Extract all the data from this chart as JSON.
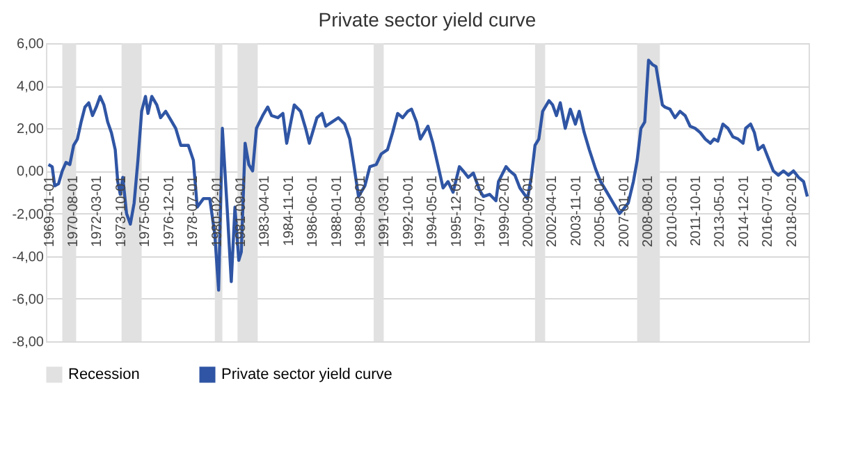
{
  "chart_data": {
    "type": "line",
    "title": "Private sector yield curve",
    "x": [
      "1969-01",
      "1969-04",
      "1969-06",
      "1969-09",
      "1969-12",
      "1970-03",
      "1970-06",
      "1970-09",
      "1970-12",
      "1971-03",
      "1971-06",
      "1971-09",
      "1971-12",
      "1972-03",
      "1972-06",
      "1972-09",
      "1972-12",
      "1973-03",
      "1973-06",
      "1973-08",
      "1973-10",
      "1973-12",
      "1974-03",
      "1974-06",
      "1974-09",
      "1974-12",
      "1975-03",
      "1975-06",
      "1975-08",
      "1975-11",
      "1976-03",
      "1976-06",
      "1976-10",
      "1977-02",
      "1977-06",
      "1977-10",
      "1978-04",
      "1978-08",
      "1978-11",
      "1979-04",
      "1979-09",
      "1980-01",
      "1980-04",
      "1980-07",
      "1980-11",
      "1981-02",
      "1981-05",
      "1981-08",
      "1981-10",
      "1982-01",
      "1982-04",
      "1982-07",
      "1982-10",
      "1983-03",
      "1983-07",
      "1983-10",
      "1984-03",
      "1984-07",
      "1984-10",
      "1985-04",
      "1985-09",
      "1986-01",
      "1986-04",
      "1986-10",
      "1987-02",
      "1987-05",
      "1987-10",
      "1988-03",
      "1988-08",
      "1988-12",
      "1989-03",
      "1989-07",
      "1989-12",
      "1990-04",
      "1990-09",
      "1991-01",
      "1991-06",
      "1991-10",
      "1992-02",
      "1992-06",
      "1992-10",
      "1993-01",
      "1993-05",
      "1993-08",
      "1994-02",
      "1994-06",
      "1994-11",
      "1995-02",
      "1995-06",
      "1995-10",
      "1996-03",
      "1996-06",
      "1996-10",
      "1997-02",
      "1997-07",
      "1997-10",
      "1998-03",
      "1998-08",
      "1998-10",
      "1999-04",
      "1999-07",
      "1999-11",
      "2000-03",
      "2000-09",
      "2000-12",
      "2001-03",
      "2001-06",
      "2001-09",
      "2002-02",
      "2002-05",
      "2002-08",
      "2002-11",
      "2003-03",
      "2003-07",
      "2003-11",
      "2004-02",
      "2004-06",
      "2004-10",
      "2005-03",
      "2005-07",
      "2005-12",
      "2006-05",
      "2006-10",
      "2007-01",
      "2007-05",
      "2007-09",
      "2007-12",
      "2008-03",
      "2008-06",
      "2008-09",
      "2008-12",
      "2009-03",
      "2009-08",
      "2009-10",
      "2010-02",
      "2010-06",
      "2010-10",
      "2011-02",
      "2011-06",
      "2011-10",
      "2012-02",
      "2012-06",
      "2012-10",
      "2013-01",
      "2013-04",
      "2013-08",
      "2013-12",
      "2014-04",
      "2014-08",
      "2014-12",
      "2015-02",
      "2015-06",
      "2015-09",
      "2015-12",
      "2016-04",
      "2016-08",
      "2016-12",
      "2017-04",
      "2017-08",
      "2017-12",
      "2018-04",
      "2018-08",
      "2018-12",
      "2019-03"
    ],
    "series": [
      {
        "name": "Private sector yield curve",
        "color": "#2f55a4",
        "values": [
          0.3,
          0.2,
          -0.7,
          -0.6,
          0.0,
          0.4,
          0.3,
          1.2,
          1.5,
          2.3,
          3.0,
          3.2,
          2.6,
          3.0,
          3.5,
          3.1,
          2.3,
          1.8,
          1.0,
          -0.5,
          -1.1,
          -0.3,
          -2.0,
          -2.5,
          -1.5,
          0.5,
          2.8,
          3.5,
          2.7,
          3.5,
          3.1,
          2.5,
          2.8,
          2.4,
          2.0,
          1.2,
          1.2,
          0.5,
          -1.7,
          -1.3,
          -1.3,
          -3.0,
          -5.6,
          2.0,
          -2.0,
          -5.2,
          -1.7,
          -4.2,
          -3.8,
          1.3,
          0.3,
          0.0,
          2.0,
          2.6,
          3.0,
          2.6,
          2.5,
          2.7,
          1.3,
          3.1,
          2.8,
          2.0,
          1.3,
          2.5,
          2.7,
          2.1,
          2.3,
          2.5,
          2.2,
          1.5,
          0.4,
          -1.2,
          -0.7,
          0.2,
          0.3,
          0.8,
          1.0,
          1.8,
          2.7,
          2.5,
          2.8,
          2.9,
          2.3,
          1.5,
          2.1,
          1.3,
          0.0,
          -0.8,
          -0.5,
          -1.0,
          0.2,
          0.0,
          -0.3,
          -0.1,
          -0.9,
          -1.2,
          -1.1,
          -1.4,
          -0.5,
          0.2,
          0.0,
          -0.2,
          -0.8,
          -1.3,
          -0.3,
          1.2,
          1.5,
          2.8,
          3.3,
          3.1,
          2.6,
          3.2,
          2.0,
          2.9,
          2.2,
          2.8,
          1.8,
          1.0,
          0.1,
          -0.5,
          -1.0,
          -1.5,
          -2.0,
          -1.8,
          -1.5,
          -0.5,
          0.5,
          2.0,
          2.3,
          5.2,
          5.0,
          4.9,
          3.1,
          3.0,
          2.9,
          2.5,
          2.8,
          2.6,
          2.1,
          2.0,
          1.8,
          1.5,
          1.3,
          1.5,
          1.4,
          2.2,
          2.0,
          1.6,
          1.5,
          1.3,
          2.0,
          2.2,
          1.8,
          1.0,
          1.2,
          0.6,
          0.0,
          -0.2,
          0.0,
          -0.2,
          0.0,
          -0.3,
          -0.5,
          -1.2
        ]
      }
    ],
    "bands": [
      {
        "axis": "x",
        "from": "1969-12",
        "to": "1970-11",
        "label": "Recession",
        "color": "#e1e1e1"
      },
      {
        "axis": "x",
        "from": "1973-11",
        "to": "1975-03",
        "color": "#e1e1e1"
      },
      {
        "axis": "x",
        "from": "1980-01",
        "to": "1980-07",
        "color": "#e1e1e1"
      },
      {
        "axis": "x",
        "from": "1981-07",
        "to": "1982-11",
        "color": "#e1e1e1"
      },
      {
        "axis": "x",
        "from": "1990-07",
        "to": "1991-03",
        "color": "#e1e1e1"
      },
      {
        "axis": "x",
        "from": "2001-03",
        "to": "2001-11",
        "color": "#e1e1e1"
      },
      {
        "axis": "x",
        "from": "2007-12",
        "to": "2009-06",
        "color": "#e1e1e1"
      }
    ],
    "xlim": [
      "1968-11",
      "2019-04"
    ],
    "xticks": [
      "1969-01-01",
      "1970-08-01",
      "1972-03-01",
      "1973-10-01",
      "1975-05-01",
      "1976-12-01",
      "1978-07-01",
      "1980-02-01",
      "1981-09-01",
      "1983-04-01",
      "1984-11-01",
      "1986-06-01",
      "1988-01-01",
      "1989-08-01",
      "1991-03-01",
      "1992-10-01",
      "1994-05-01",
      "1995-12-01",
      "1997-07-01",
      "1999-02-01",
      "2000-09-01",
      "2002-04-01",
      "2003-11-01",
      "2005-06-01",
      "2007-01-01",
      "2008-08-01",
      "2010-03-01",
      "2011-10-01",
      "2013-05-01",
      "2014-12-01",
      "2016-07-01",
      "2018-02-01"
    ],
    "ylim": [
      -8,
      6
    ],
    "yticks": [
      {
        "value": -8,
        "label": "-8,00"
      },
      {
        "value": -6,
        "label": "-6,00"
      },
      {
        "value": -4,
        "label": "-4,00"
      },
      {
        "value": -2,
        "label": "-2,00"
      },
      {
        "value": 0,
        "label": "0,00"
      },
      {
        "value": 2,
        "label": "2,00"
      },
      {
        "value": 4,
        "label": "4,00"
      },
      {
        "value": 6,
        "label": "6,00"
      }
    ],
    "grid": "y",
    "legend": "bottom",
    "marker": "none",
    "line_style": "solid"
  }
}
